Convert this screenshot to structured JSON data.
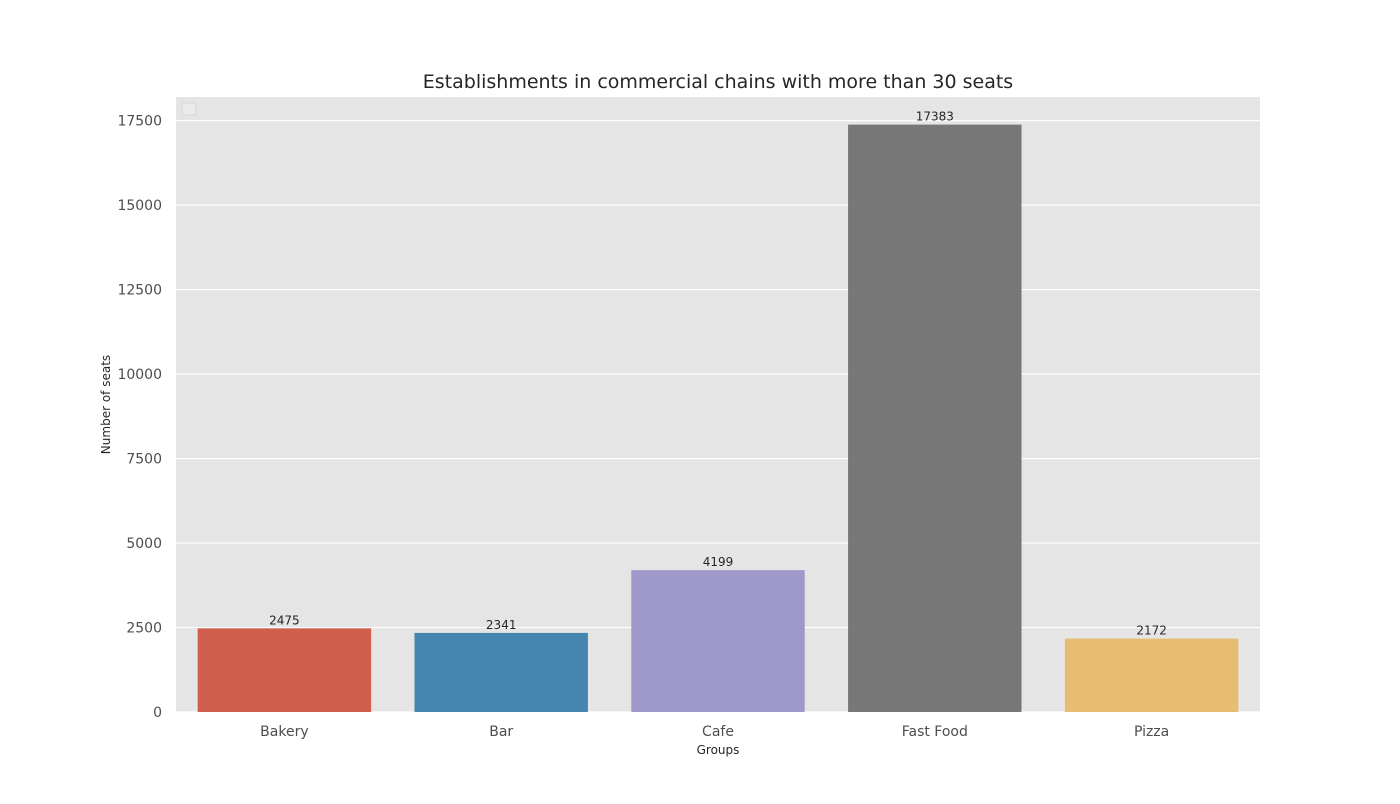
{
  "chart_data": {
    "type": "bar",
    "title": "Establishments in commercial chains with more than 30 seats",
    "xlabel": "Groups",
    "ylabel": "Number of seats",
    "categories": [
      "Bakery",
      "Bar",
      "Cafe",
      "Fast Food",
      "Pizza"
    ],
    "values": [
      2475,
      2341,
      4199,
      17383,
      2172
    ],
    "value_labels": [
      "2475",
      "2341",
      "4199",
      "17383",
      "2172"
    ],
    "colors": [
      "#D05E4C",
      "#4486AF",
      "#9F99CB",
      "#777777",
      "#E8BC71"
    ],
    "ylim": [
      0,
      18200
    ],
    "yticks": [
      0,
      2500,
      5000,
      7500,
      10000,
      12500,
      15000,
      17500
    ],
    "ytick_labels": [
      "0",
      "2500",
      "5000",
      "7500",
      "10000",
      "12500",
      "15000",
      "17500"
    ],
    "grid": true,
    "legend": "top-left (empty)",
    "background": "#E5E5E5",
    "grid_color": "#FFFFFF"
  }
}
